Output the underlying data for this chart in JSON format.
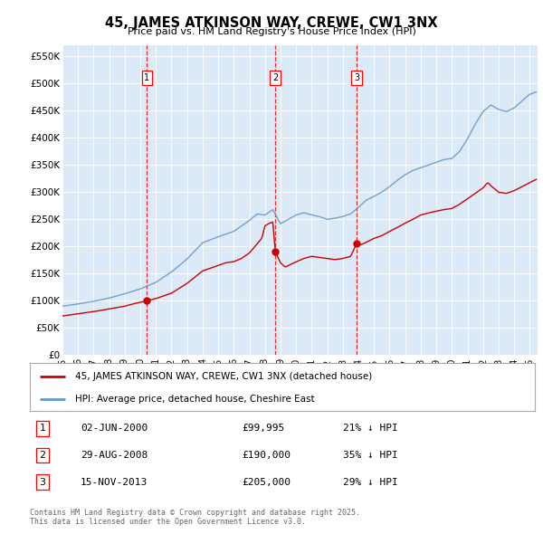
{
  "title": "45, JAMES ATKINSON WAY, CREWE, CW1 3NX",
  "subtitle": "Price paid vs. HM Land Registry's House Price Index (HPI)",
  "background_color": "#ffffff",
  "plot_bg_color": "#dce9f7",
  "ylim": [
    0,
    570000
  ],
  "yticks": [
    0,
    50000,
    100000,
    150000,
    200000,
    250000,
    300000,
    350000,
    400000,
    450000,
    500000,
    550000
  ],
  "ytick_labels": [
    "£0",
    "£50K",
    "£100K",
    "£150K",
    "£200K",
    "£250K",
    "£300K",
    "£350K",
    "£400K",
    "£450K",
    "£500K",
    "£550K"
  ],
  "legend1_label": "45, JAMES ATKINSON WAY, CREWE, CW1 3NX (detached house)",
  "legend2_label": "HPI: Average price, detached house, Cheshire East",
  "legend1_color": "#cc0000",
  "legend2_color": "#6699cc",
  "footer": "Contains HM Land Registry data © Crown copyright and database right 2025.\nThis data is licensed under the Open Government Licence v3.0.",
  "sale_markers": [
    {
      "num": 1,
      "date": "02-JUN-2000",
      "price": 99995,
      "pct": "21% ↓ HPI",
      "x_year": 2000.42
    },
    {
      "num": 2,
      "date": "29-AUG-2008",
      "price": 190000,
      "pct": "35% ↓ HPI",
      "x_year": 2008.67
    },
    {
      "num": 3,
      "date": "15-NOV-2013",
      "price": 205000,
      "pct": "29% ↓ HPI",
      "x_year": 2013.88
    }
  ],
  "xlim_start": 1995.0,
  "xlim_end": 2025.5
}
